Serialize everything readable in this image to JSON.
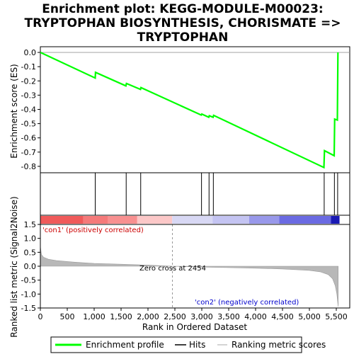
{
  "chart_data": {
    "type": "line",
    "title_lines": [
      "Enrichment plot: KEGG-MODULE-M00023:",
      "TRYPTOPHAN BIOSYNTHESIS, CHORISMATE =>",
      "TRYPTOPHAN"
    ],
    "es_panel": {
      "ylabel": "Enrichment score (ES)",
      "ylim": [
        -0.845,
        0.04
      ],
      "yticks": [
        0.0,
        -0.1,
        -0.2,
        -0.3,
        -0.4,
        -0.5,
        -0.6,
        -0.7,
        -0.8
      ],
      "ytick_labels": [
        "0.0",
        "-0.1",
        "-0.2",
        "-0.3",
        "-0.4",
        "-0.5",
        "-0.6",
        "-0.7",
        "-0.8"
      ],
      "line_color": "#00ff00",
      "profile": [
        [
          0,
          0.0
        ],
        [
          1020,
          -0.18
        ],
        [
          1025,
          -0.14
        ],
        [
          1590,
          -0.235
        ],
        [
          1600,
          -0.218
        ],
        [
          1860,
          -0.26
        ],
        [
          1870,
          -0.247
        ],
        [
          2990,
          -0.44
        ],
        [
          3000,
          -0.433
        ],
        [
          3130,
          -0.455
        ],
        [
          3140,
          -0.445
        ],
        [
          3210,
          -0.455
        ],
        [
          3220,
          -0.442
        ],
        [
          5270,
          -0.808
        ],
        [
          5280,
          -0.69
        ],
        [
          5460,
          -0.725
        ],
        [
          5470,
          -0.468
        ],
        [
          5520,
          -0.475
        ],
        [
          5530,
          0.0
        ]
      ]
    },
    "hits": [
      1020,
      1595,
      1865,
      2995,
      3135,
      3215,
      5275,
      5465,
      5525
    ],
    "ranking_panel": {
      "ylabel": "Ranked list metric (Signal2Noise)",
      "ylim": [
        -1.5,
        1.5
      ],
      "yticks": [
        1.5,
        1.0,
        0.5,
        0.0,
        -0.5,
        -1.0,
        -1.5
      ],
      "ytick_labels": [
        "1.5",
        "1.0",
        "0.5",
        "0.0",
        "-0.5",
        "-1.0",
        "-1.5"
      ],
      "metric_curve": [
        [
          0,
          0.72
        ],
        [
          20,
          0.42
        ],
        [
          60,
          0.32
        ],
        [
          150,
          0.25
        ],
        [
          300,
          0.2
        ],
        [
          600,
          0.15
        ],
        [
          1000,
          0.1
        ],
        [
          1500,
          0.07
        ],
        [
          2000,
          0.04
        ],
        [
          2454,
          0.0
        ],
        [
          3000,
          -0.03
        ],
        [
          3500,
          -0.05
        ],
        [
          4000,
          -0.07
        ],
        [
          4500,
          -0.1
        ],
        [
          5000,
          -0.15
        ],
        [
          5200,
          -0.2
        ],
        [
          5350,
          -0.3
        ],
        [
          5430,
          -0.45
        ],
        [
          5480,
          -0.7
        ],
        [
          5510,
          -1.0
        ],
        [
          5535,
          -1.45
        ]
      ],
      "zero_cross_label": "Zero cross at 2454",
      "zero_cross": 2454,
      "pos_label": "'con1' (positively correlated)",
      "neg_label": "'con2' (negatively correlated)",
      "pos_label_color": "#cc0000",
      "neg_label_color": "#0000cc"
    },
    "heat_segments": [
      {
        "from": 0,
        "to": 800,
        "color": "#f05a5a"
      },
      {
        "from": 800,
        "to": 1250,
        "color": "#f57a7a"
      },
      {
        "from": 1250,
        "to": 1800,
        "color": "#f89090"
      },
      {
        "from": 1800,
        "to": 2450,
        "color": "#fcc8c8"
      },
      {
        "from": 2450,
        "to": 3200,
        "color": "#d8d8f4"
      },
      {
        "from": 3200,
        "to": 3880,
        "color": "#c4c4f2"
      },
      {
        "from": 3880,
        "to": 4440,
        "color": "#9898ea"
      },
      {
        "from": 4440,
        "to": 5400,
        "color": "#6a6ae2"
      },
      {
        "from": 5400,
        "to": 5560,
        "color": "#1a1ab4"
      }
    ],
    "xlabel": "Rank in Ordered Dataset",
    "xlim": [
      0,
      5750
    ],
    "xticks": [
      0,
      500,
      1000,
      1500,
      2000,
      2500,
      3000,
      3500,
      4000,
      4500,
      5000,
      5500
    ],
    "xtick_labels": [
      "0",
      "500",
      "1,000",
      "1,500",
      "2,000",
      "2,500",
      "3,000",
      "3,500",
      "4,000",
      "4,500",
      "5,000",
      "5,500"
    ],
    "legend": [
      "Enrichment profile",
      "Hits",
      "Ranking metric scores"
    ]
  }
}
